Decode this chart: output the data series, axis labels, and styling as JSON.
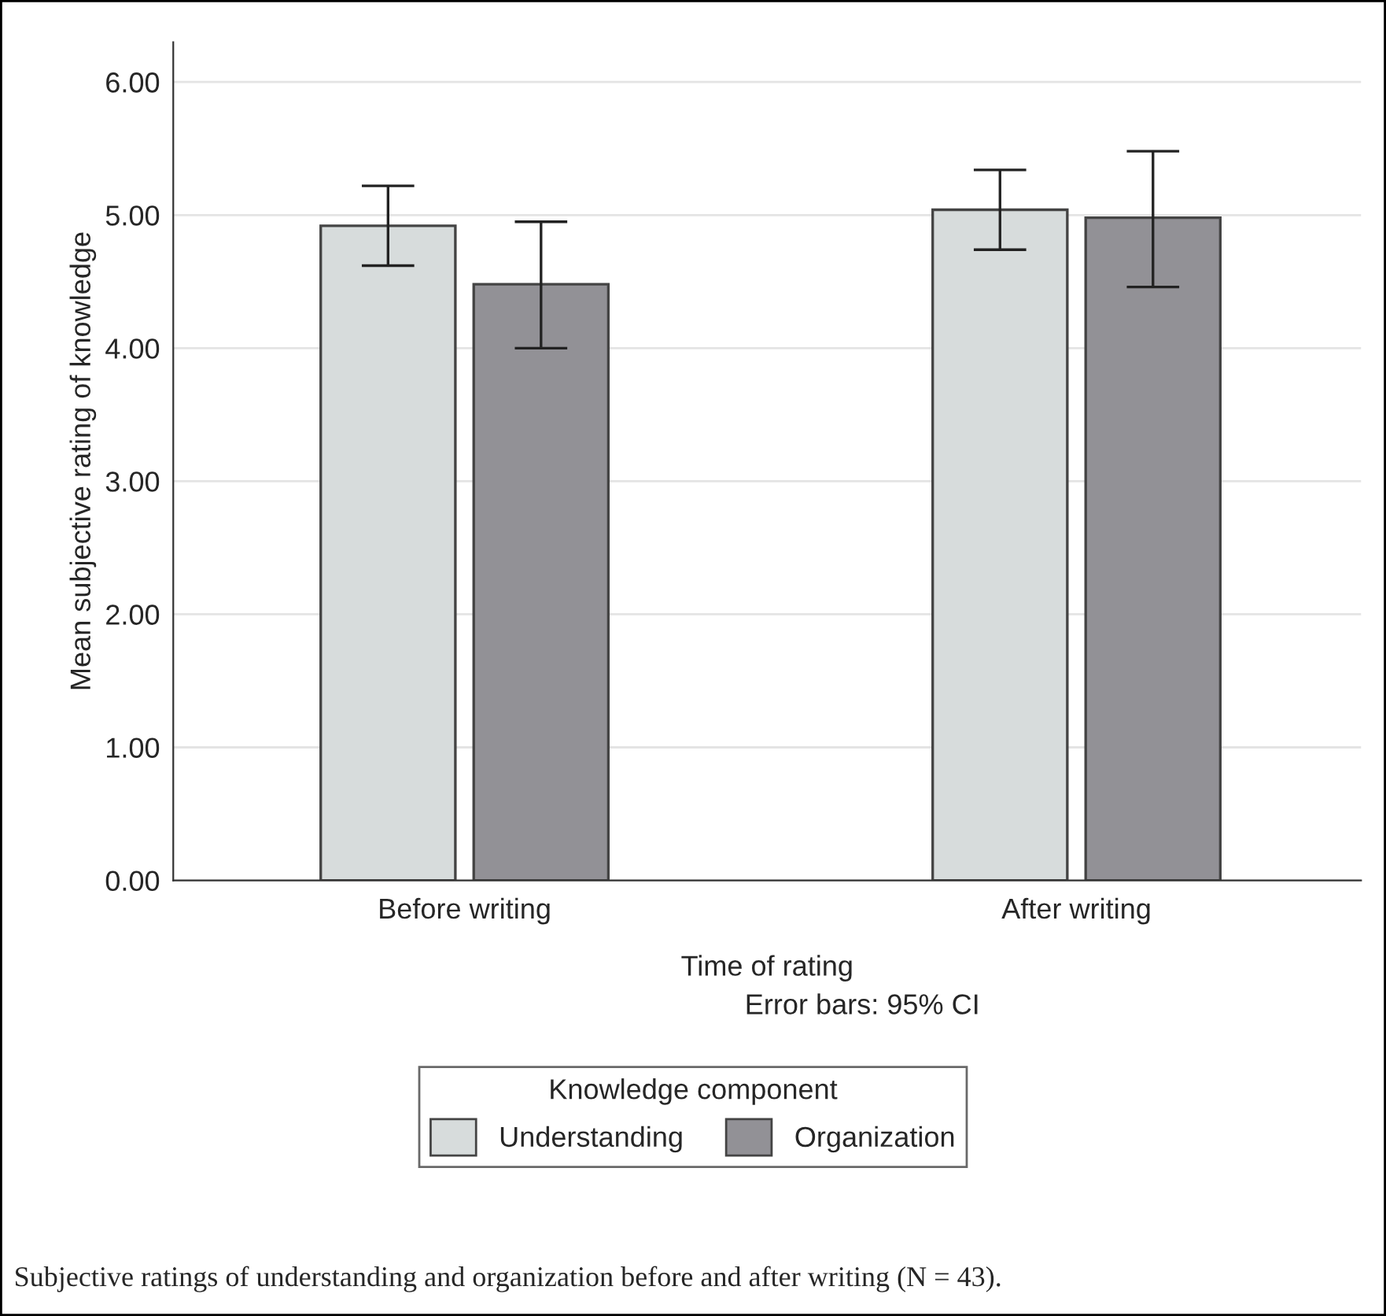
{
  "chart_data": {
    "type": "bar",
    "xlabel": "Time of rating",
    "ylabel": "Mean subjective rating of knowledge",
    "legend_title": "Knowledge component",
    "categories": [
      "Before writing",
      "After writing"
    ],
    "series": [
      {
        "name": "Understanding",
        "color": "#d7dcdc",
        "values": [
          4.92,
          5.04
        ],
        "errors": [
          [
            4.62,
            5.22
          ],
          [
            4.74,
            5.34
          ]
        ]
      },
      {
        "name": "Organization",
        "color": "#929196",
        "values": [
          4.48,
          4.98
        ],
        "errors": [
          [
            4.0,
            4.95
          ],
          [
            4.46,
            5.48
          ]
        ]
      }
    ],
    "ylim": [
      0,
      6.3
    ],
    "yticks": [
      {
        "value": 0,
        "label": "0.00"
      },
      {
        "value": 1,
        "label": "1.00"
      },
      {
        "value": 2,
        "label": "2.00"
      },
      {
        "value": 3,
        "label": "3.00"
      },
      {
        "value": 4,
        "label": "4.00"
      },
      {
        "value": 5,
        "label": "5.00"
      },
      {
        "value": 6,
        "label": "6.00"
      }
    ],
    "grid": "y",
    "legend": "bottom",
    "annotations": [
      "Error bars: 95% CI",
      "Subjective ratings of understanding and organization before and after writing (N = 43)."
    ]
  }
}
